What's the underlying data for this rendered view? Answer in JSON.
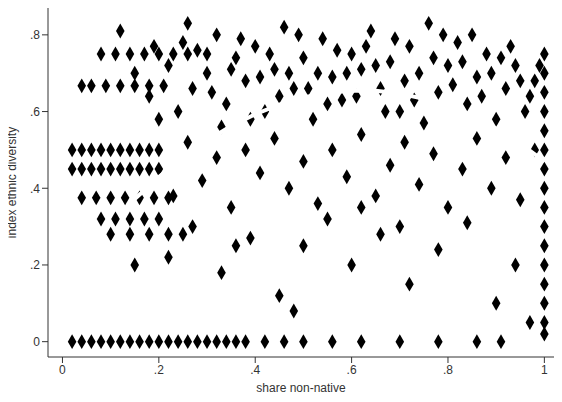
{
  "chart_data": {
    "type": "scatter",
    "x_label": "share non-native",
    "y_label": "index ethnic diversity",
    "xlim": [
      -0.03,
      1.02
    ],
    "ylim": [
      -0.04,
      0.87
    ],
    "xticks": [
      0,
      {
        "value": 0.2,
        "label": ".2"
      },
      {
        "value": 0.4,
        "label": ".4"
      },
      {
        "value": 0.6,
        "label": ".6"
      },
      {
        "value": 0.8,
        "label": ".8"
      },
      1
    ],
    "yticks": [
      0,
      {
        "value": 0.2,
        "label": ".2"
      },
      {
        "value": 0.4,
        "label": ".4"
      },
      {
        "value": 0.6,
        "label": ".6"
      },
      {
        "value": 0.8,
        "label": ".8"
      }
    ],
    "grid": false,
    "series": [
      {
        "type": "scatter",
        "marker": "diamond",
        "color": "#000000",
        "x": [
          0.02,
          0.04,
          0.06,
          0.08,
          0.1,
          0.12,
          0.14,
          0.16,
          0.18,
          0.2,
          0.22,
          0.24,
          0.26,
          0.28,
          0.3,
          0.32,
          0.34,
          0.36,
          0.38,
          0.42,
          0.46,
          0.5,
          0.56,
          0.62,
          0.7,
          0.78,
          0.86,
          0.91,
          0.02,
          0.04,
          0.06,
          0.08,
          0.1,
          0.12,
          0.14,
          0.16,
          0.18,
          0.2,
          0.02,
          0.04,
          0.06,
          0.08,
          0.1,
          0.12,
          0.14,
          0.16,
          0.18,
          0.04,
          0.07,
          0.1,
          0.13,
          0.16,
          0.19,
          0.22,
          0.04,
          0.06,
          0.09,
          0.12,
          0.15,
          0.18,
          0.21,
          0.08,
          0.11,
          0.14,
          0.17,
          0.2,
          0.23,
          0.26,
          0.3,
          0.08,
          0.11,
          0.14,
          0.17,
          0.2,
          0.1,
          0.14,
          0.18,
          0.22,
          0.25,
          1,
          1,
          1,
          1,
          1,
          1,
          1,
          1,
          1,
          1,
          1,
          1,
          1,
          1,
          1,
          1,
          0.22,
          0.25,
          0.27,
          0.3,
          0.32,
          0.34,
          0.36,
          0.38,
          0.4,
          0.42,
          0.44,
          0.46,
          0.48,
          0.5,
          0.52,
          0.54,
          0.56,
          0.58,
          0.6,
          0.62,
          0.64,
          0.66,
          0.68,
          0.7,
          0.72,
          0.74,
          0.76,
          0.78,
          0.8,
          0.82,
          0.84,
          0.86,
          0.88,
          0.9,
          0.92,
          0.94,
          0.96,
          0.98,
          0.15,
          0.18,
          0.2,
          0.24,
          0.28,
          0.33,
          0.37,
          0.41,
          0.45,
          0.49,
          0.53,
          0.57,
          0.61,
          0.65,
          0.69,
          0.73,
          0.77,
          0.81,
          0.85,
          0.89,
          0.93,
          0.97,
          0.99,
          0.12,
          0.19,
          0.26,
          0.31,
          0.35,
          0.39,
          0.43,
          0.47,
          0.51,
          0.55,
          0.59,
          0.63,
          0.67,
          0.71,
          0.75,
          0.79,
          0.83,
          0.87,
          0.91,
          0.95,
          0.2,
          0.23,
          0.26,
          0.29,
          0.32,
          0.35,
          0.38,
          0.41,
          0.44,
          0.47,
          0.5,
          0.53,
          0.56,
          0.59,
          0.62,
          0.65,
          0.68,
          0.71,
          0.74,
          0.77,
          0.8,
          0.83,
          0.86,
          0.89,
          0.92,
          0.95,
          0.98,
          0.22,
          0.27,
          0.33,
          0.39,
          0.45,
          0.5,
          0.55,
          0.6,
          0.66,
          0.72,
          0.78,
          0.84,
          0.9,
          0.94,
          0.97,
          0.48,
          0.62,
          0.7,
          0.36,
          0.15
        ],
        "values": [
          0,
          0,
          0,
          0,
          0,
          0,
          0,
          0,
          0,
          0,
          0,
          0,
          0,
          0,
          0,
          0,
          0,
          0,
          0,
          0,
          0,
          0,
          0,
          0,
          0,
          0,
          0,
          0,
          0.5,
          0.5,
          0.5,
          0.5,
          0.5,
          0.5,
          0.5,
          0.5,
          0.5,
          0.5,
          0.45,
          0.45,
          0.45,
          0.45,
          0.45,
          0.45,
          0.45,
          0.45,
          0.45,
          0.375,
          0.375,
          0.375,
          0.375,
          0.375,
          0.375,
          0.375,
          0.667,
          0.667,
          0.667,
          0.667,
          0.667,
          0.667,
          0.667,
          0.75,
          0.75,
          0.75,
          0.75,
          0.75,
          0.75,
          0.75,
          0.75,
          0.32,
          0.32,
          0.32,
          0.32,
          0.32,
          0.28,
          0.28,
          0.28,
          0.28,
          0.28,
          0.02,
          0.05,
          0.1,
          0.15,
          0.2,
          0.25,
          0.3,
          0.35,
          0.4,
          0.45,
          0.5,
          0.55,
          0.6,
          0.65,
          0.7,
          0.75,
          0.72,
          0.78,
          0.66,
          0.7,
          0.8,
          0.62,
          0.74,
          0.68,
          0.77,
          0.6,
          0.71,
          0.82,
          0.66,
          0.74,
          0.58,
          0.79,
          0.69,
          0.63,
          0.75,
          0.71,
          0.81,
          0.66,
          0.73,
          0.6,
          0.77,
          0.7,
          0.83,
          0.65,
          0.72,
          0.78,
          0.62,
          0.69,
          0.75,
          0.58,
          0.66,
          0.72,
          0.6,
          0.68,
          0.7,
          0.64,
          0.58,
          0.6,
          0.76,
          0.56,
          0.79,
          0.69,
          0.64,
          0.8,
          0.7,
          0.76,
          0.64,
          0.72,
          0.79,
          0.63,
          0.74,
          0.67,
          0.8,
          0.7,
          0.77,
          0.64,
          0.72,
          0.81,
          0.77,
          0.83,
          0.65,
          0.71,
          0.58,
          0.75,
          0.7,
          0.66,
          0.62,
          0.7,
          0.77,
          0.6,
          0.68,
          0.57,
          0.8,
          0.73,
          0.64,
          0.74,
          0.68,
          0.45,
          0.38,
          0.52,
          0.42,
          0.48,
          0.35,
          0.5,
          0.44,
          0.53,
          0.4,
          0.47,
          0.36,
          0.5,
          0.43,
          0.54,
          0.38,
          0.46,
          0.52,
          0.41,
          0.49,
          0.35,
          0.45,
          0.53,
          0.4,
          0.48,
          0.37,
          0.5,
          0.22,
          0.3,
          0.18,
          0.27,
          0.12,
          0.25,
          0.32,
          0.2,
          0.28,
          0.15,
          0.24,
          0.31,
          0.1,
          0.2,
          0.05,
          0.08,
          0.35,
          0.3,
          0.25,
          0.2
        ]
      },
      {
        "type": "line",
        "color": "#ffffff",
        "x": [
          0.15,
          0.2,
          0.25,
          0.3,
          0.35,
          0.4,
          0.45,
          0.5,
          0.55,
          0.6,
          0.65,
          0.7,
          0.75,
          0.8,
          0.85,
          0.9,
          0.95,
          1
        ],
        "values": [
          0.372,
          0.429,
          0.48,
          0.524,
          0.562,
          0.593,
          0.618,
          0.637,
          0.649,
          0.655,
          0.654,
          0.647,
          0.633,
          0.614,
          0.587,
          0.555,
          0.516,
          0.47
        ]
      }
    ]
  }
}
